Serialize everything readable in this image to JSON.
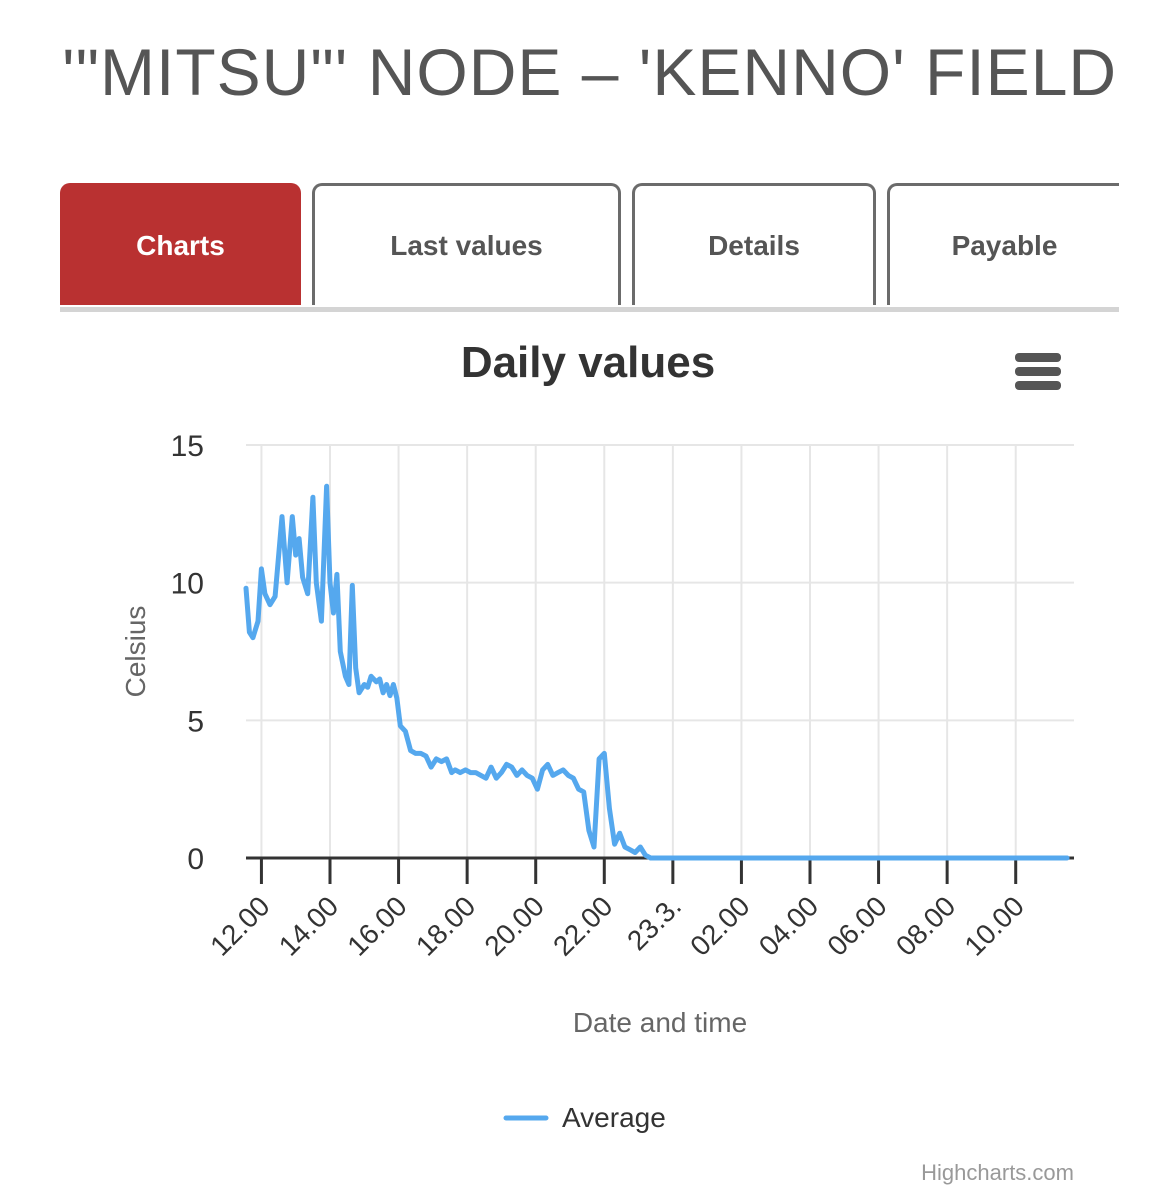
{
  "page": {
    "title": "'\"MITSU\"' NODE – 'KENNO' FIELD"
  },
  "tabs": [
    {
      "label": "Charts",
      "active": true
    },
    {
      "label": "Last values",
      "active": false
    },
    {
      "label": "Details",
      "active": false
    },
    {
      "label": "Payable",
      "active": false
    }
  ],
  "colors": {
    "accent": "#b93131",
    "series": "#55a8ee"
  },
  "menu": {
    "icon": "hamburger-menu-icon"
  },
  "credits": "Highcharts.com",
  "chart_data": {
    "type": "line",
    "title": "Daily values",
    "xlabel": "Date and time",
    "ylabel": "Celsius",
    "ylim": [
      0,
      15
    ],
    "yticks": [
      0,
      5,
      10,
      15
    ],
    "xticks": [
      {
        "label": "12.00",
        "hour": 0
      },
      {
        "label": "14.00",
        "hour": 2
      },
      {
        "label": "16.00",
        "hour": 4
      },
      {
        "label": "18.00",
        "hour": 6
      },
      {
        "label": "20.00",
        "hour": 8
      },
      {
        "label": "22.00",
        "hour": 10
      },
      {
        "label": "23.3.",
        "hour": 12
      },
      {
        "label": "02.00",
        "hour": 14
      },
      {
        "label": "04.00",
        "hour": 16
      },
      {
        "label": "06.00",
        "hour": 18
      },
      {
        "label": "08.00",
        "hour": 20
      },
      {
        "label": "10.00",
        "hour": 22
      }
    ],
    "xlim": [
      -0.45,
      23.7
    ],
    "grid": true,
    "legend_position": "bottom-center",
    "series": [
      {
        "name": "Average",
        "hours": [
          -0.45,
          -0.35,
          -0.25,
          -0.1,
          0,
          0.1,
          0.25,
          0.4,
          0.6,
          0.75,
          0.9,
          1.0,
          1.1,
          1.2,
          1.35,
          1.5,
          1.6,
          1.75,
          1.9,
          2.0,
          2.1,
          2.2,
          2.3,
          2.45,
          2.55,
          2.65,
          2.75,
          2.85,
          3.0,
          3.1,
          3.2,
          3.35,
          3.45,
          3.55,
          3.65,
          3.75,
          3.85,
          3.95,
          4.05,
          4.2,
          4.35,
          4.5,
          4.65,
          4.8,
          4.95,
          5.1,
          5.25,
          5.4,
          5.55,
          5.65,
          5.8,
          5.95,
          6.1,
          6.25,
          6.4,
          6.55,
          6.7,
          6.85,
          7.0,
          7.15,
          7.3,
          7.45,
          7.6,
          7.75,
          7.9,
          8.05,
          8.2,
          8.35,
          8.5,
          8.65,
          8.8,
          8.95,
          9.1,
          9.25,
          9.4,
          9.55,
          9.7,
          9.85,
          10.0,
          10.15,
          10.3,
          10.45,
          10.6,
          10.75,
          10.9,
          11.05,
          11.2,
          11.35,
          11.5,
          11.65,
          11.8,
          11.95,
          12.05,
          12.2,
          12.35,
          12.5,
          12.65,
          12.8,
          12.95,
          13.1,
          13.3,
          13.5,
          14.0,
          15,
          16,
          17,
          18,
          19,
          20,
          21,
          22,
          23.5
        ],
        "values": [
          9.8,
          8.2,
          8.0,
          8.6,
          10.5,
          9.6,
          9.2,
          9.5,
          12.4,
          10.0,
          12.4,
          11.0,
          11.6,
          10.2,
          9.6,
          13.1,
          10.0,
          8.6,
          13.5,
          10.0,
          8.9,
          10.3,
          7.5,
          6.6,
          6.3,
          9.9,
          6.9,
          6.0,
          6.3,
          6.2,
          6.6,
          6.4,
          6.5,
          6.0,
          6.3,
          5.9,
          6.3,
          5.8,
          4.8,
          4.6,
          3.9,
          3.8,
          3.8,
          3.7,
          3.3,
          3.6,
          3.5,
          3.6,
          3.1,
          3.2,
          3.1,
          3.2,
          3.1,
          3.1,
          3.0,
          2.9,
          3.3,
          2.9,
          3.1,
          3.4,
          3.3,
          3.0,
          3.2,
          3.0,
          2.9,
          2.5,
          3.2,
          3.4,
          3.0,
          3.1,
          3.2,
          3.0,
          2.9,
          2.5,
          2.4,
          1.0,
          0.4,
          3.6,
          3.8,
          1.8,
          0.5,
          0.9,
          0.4,
          0.3,
          0.2,
          0.4,
          0.1,
          0.0,
          0.0,
          0.0,
          0.0,
          0.0,
          0.0,
          0.0,
          0.0,
          0.0,
          0.0,
          0.0,
          0.0,
          0.0,
          0.0,
          0.0,
          0.0,
          0.0,
          0.0,
          0.0,
          0.0,
          0.0,
          0.0,
          0.0,
          0.0,
          0.0
        ]
      }
    ]
  }
}
